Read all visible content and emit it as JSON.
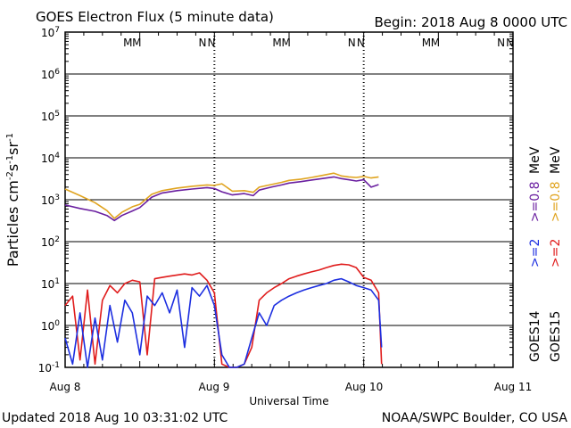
{
  "header": {
    "title": "GOES Electron Flux (5 minute data)",
    "begin": "Begin: 2018 Aug 8 0000 UTC"
  },
  "footer": {
    "updated": "Updated 2018 Aug 10 03:31:02 UTC",
    "credit": "NOAA/SWPC Boulder, CO USA"
  },
  "axes": {
    "xlabel": "Universal Time",
    "ylabel_parts": [
      "Particles cm",
      "-2",
      "s",
      "-1",
      "sr",
      "-1"
    ],
    "x_ticks": [
      "Aug 8",
      "Aug 9",
      "Aug 10",
      "Aug 11"
    ],
    "y_tick_base": "10",
    "y_exponents": [
      "-1",
      "0",
      "1",
      "2",
      "3",
      "4",
      "5",
      "6",
      "7"
    ]
  },
  "markers": [
    {
      "label": "M",
      "satellite": "GOES14",
      "day": 0.42,
      "color": "#2b2bc8"
    },
    {
      "label": "M",
      "satellite": "GOES15",
      "day": 0.48,
      "color": "#d62020"
    },
    {
      "label": "N",
      "satellite": "GOES14",
      "day": 0.92,
      "color": "#2b2bc8"
    },
    {
      "label": "N",
      "satellite": "GOES15",
      "day": 0.98,
      "color": "#d62020"
    },
    {
      "label": "M",
      "satellite": "GOES14",
      "day": 1.42,
      "color": "#2b2bc8"
    },
    {
      "label": "M",
      "satellite": "GOES15",
      "day": 1.48,
      "color": "#d62020"
    },
    {
      "label": "N",
      "satellite": "GOES14",
      "day": 1.92,
      "color": "#2b2bc8"
    },
    {
      "label": "N",
      "satellite": "GOES15",
      "day": 1.98,
      "color": "#d62020"
    },
    {
      "label": "M",
      "satellite": "GOES14",
      "day": 2.42,
      "color": "#2b2bc8"
    },
    {
      "label": "M",
      "satellite": "GOES15",
      "day": 2.48,
      "color": "#d62020"
    },
    {
      "label": "N",
      "satellite": "GOES14",
      "day": 2.92,
      "color": "#2b2bc8"
    },
    {
      "label": "N",
      "satellite": "GOES15",
      "day": 2.98,
      "color": "#d62020"
    }
  ],
  "legend": {
    "goes15_e2": ">=2",
    "goes15_e08": ">=0.8",
    "goes15_unit": "MeV",
    "goes15_sat": "GOES15",
    "goes14_e2": ">=2",
    "goes14_e08": ">=0.8",
    "goes14_unit": "MeV",
    "goes14_sat": "GOES14",
    "colors": {
      "goes15_e2": "#e01c1c",
      "goes15_e08": "#e0a420",
      "goes14_e2": "#1c2ee0",
      "goes14_e08": "#6a1fa0"
    }
  },
  "chart_data": {
    "type": "line",
    "title": "GOES Electron Flux (5 minute data)",
    "xlabel": "Universal Time",
    "ylabel": "Particles cm-2 s-1 sr-1",
    "x_unit": "days since 2018 Aug 8 00:00 UTC",
    "xlim": [
      0,
      3
    ],
    "ylim": [
      0.1,
      10000000
    ],
    "yscale": "log",
    "threshold": 1000,
    "day_boundaries": [
      1,
      2
    ],
    "series": [
      {
        "name": "GOES15 >=0.8 MeV",
        "color": "#e0a420",
        "x": [
          0.0,
          0.1,
          0.2,
          0.28,
          0.33,
          0.38,
          0.45,
          0.5,
          0.58,
          0.65,
          0.75,
          0.85,
          0.95,
          1.0,
          1.05,
          1.12,
          1.2,
          1.26,
          1.3,
          1.38,
          1.45,
          1.5,
          1.58,
          1.65,
          1.72,
          1.8,
          1.85,
          1.9,
          1.95,
          2.0,
          2.05,
          2.1
        ],
        "values": [
          1800,
          1250,
          850,
          550,
          360,
          500,
          680,
          780,
          1350,
          1650,
          1900,
          2100,
          2250,
          2200,
          2400,
          1600,
          1650,
          1500,
          2000,
          2300,
          2600,
          2900,
          3100,
          3400,
          3800,
          4300,
          3700,
          3500,
          3400,
          3600,
          3300,
          3500
        ]
      },
      {
        "name": "GOES14 >=0.8 MeV",
        "color": "#6a1fa0",
        "x": [
          0.0,
          0.1,
          0.2,
          0.28,
          0.33,
          0.38,
          0.45,
          0.5,
          0.58,
          0.65,
          0.75,
          0.85,
          0.95,
          1.0,
          1.05,
          1.12,
          1.2,
          1.26,
          1.3,
          1.38,
          1.45,
          1.5,
          1.58,
          1.65,
          1.72,
          1.8,
          1.85,
          1.9,
          1.95,
          2.0,
          2.05,
          2.1
        ],
        "values": [
          750,
          620,
          530,
          420,
          320,
          420,
          540,
          650,
          1150,
          1450,
          1650,
          1800,
          1950,
          1850,
          1550,
          1300,
          1400,
          1250,
          1700,
          2000,
          2250,
          2500,
          2700,
          2950,
          3200,
          3500,
          3200,
          3000,
          2800,
          3000,
          2000,
          2300
        ]
      },
      {
        "name": "GOES15 >=2 MeV",
        "color": "#e01c1c",
        "x": [
          0.0,
          0.05,
          0.1,
          0.15,
          0.2,
          0.25,
          0.3,
          0.35,
          0.4,
          0.45,
          0.5,
          0.55,
          0.6,
          0.65,
          0.7,
          0.75,
          0.8,
          0.85,
          0.9,
          0.95,
          1.0,
          1.05,
          1.1,
          1.15,
          1.2,
          1.25,
          1.3,
          1.35,
          1.4,
          1.45,
          1.5,
          1.55,
          1.6,
          1.65,
          1.7,
          1.75,
          1.8,
          1.85,
          1.9,
          1.95,
          2.0,
          2.05,
          2.1,
          2.12
        ],
        "values": [
          3,
          5,
          0.15,
          7,
          0.12,
          4,
          9,
          6,
          10,
          12,
          11,
          0.2,
          13,
          14,
          15,
          16,
          17,
          16,
          18,
          12,
          6,
          0.12,
          0.1,
          0.1,
          0.12,
          0.3,
          4,
          6,
          8,
          10,
          13,
          15,
          17,
          19,
          21,
          24,
          27,
          29,
          28,
          24,
          14,
          12,
          6,
          0.12
        ]
      },
      {
        "name": "GOES14 >=2 MeV",
        "color": "#1c2ee0",
        "x": [
          0.0,
          0.05,
          0.1,
          0.15,
          0.2,
          0.25,
          0.3,
          0.35,
          0.4,
          0.45,
          0.5,
          0.55,
          0.6,
          0.65,
          0.7,
          0.75,
          0.8,
          0.85,
          0.9,
          0.95,
          1.0,
          1.05,
          1.1,
          1.15,
          1.2,
          1.25,
          1.3,
          1.35,
          1.4,
          1.45,
          1.5,
          1.55,
          1.6,
          1.65,
          1.7,
          1.75,
          1.8,
          1.85,
          1.9,
          1.95,
          2.0,
          2.05,
          2.1,
          2.12
        ],
        "values": [
          0.5,
          0.12,
          2,
          0.1,
          1.5,
          0.15,
          3,
          0.4,
          4,
          2,
          0.2,
          5,
          3,
          6,
          2,
          7,
          0.3,
          8,
          5,
          9,
          3,
          0.2,
          0.1,
          0.1,
          0.12,
          0.5,
          2,
          1,
          3,
          4,
          5,
          6,
          7,
          8,
          9,
          10,
          12,
          13,
          11,
          9,
          8,
          7,
          4,
          0.3
        ]
      }
    ]
  }
}
